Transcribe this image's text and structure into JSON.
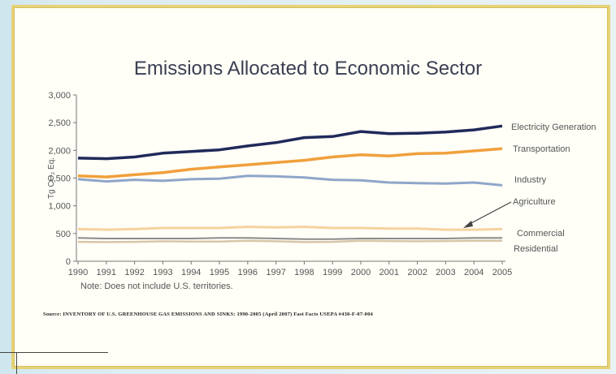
{
  "chart_data": {
    "type": "line",
    "title": "Emissions Allocated to Economic Sector",
    "ylabel": "Tg CO₂ Eq.",
    "xlabel": "",
    "ylim": [
      0,
      3000
    ],
    "yticks": [
      0,
      500,
      1000,
      1500,
      2000,
      2500,
      3000
    ],
    "ytick_labels": [
      "0",
      "500",
      "1,000",
      "1,500",
      "2,000",
      "2,500",
      "3,000"
    ],
    "x": [
      "1990",
      "1991",
      "1992",
      "1993",
      "1994",
      "1995",
      "1996",
      "1997",
      "1998",
      "1999",
      "2000",
      "2001",
      "2002",
      "2003",
      "2004",
      "2005"
    ],
    "series": [
      {
        "name": "Electricity Generation",
        "color": "#1f2a5a",
        "values": [
          1860,
          1850,
          1880,
          1950,
          1980,
          2010,
          2080,
          2140,
          2230,
          2250,
          2340,
          2300,
          2310,
          2330,
          2370,
          2440
        ]
      },
      {
        "name": "Transportation",
        "color": "#f0a03c",
        "values": [
          1540,
          1520,
          1560,
          1600,
          1660,
          1700,
          1740,
          1780,
          1820,
          1880,
          1920,
          1900,
          1940,
          1950,
          1990,
          2030
        ]
      },
      {
        "name": "Industry",
        "color": "#8fa6c9",
        "values": [
          1480,
          1440,
          1470,
          1450,
          1480,
          1490,
          1540,
          1530,
          1510,
          1470,
          1460,
          1420,
          1410,
          1400,
          1420,
          1370
        ]
      },
      {
        "name": "Agriculture",
        "color": "#f6d39e",
        "values": [
          580,
          570,
          580,
          600,
          600,
          600,
          620,
          610,
          620,
          600,
          600,
          590,
          590,
          570,
          570,
          580
        ]
      },
      {
        "name": "Commercial",
        "color": "#8a8a8a",
        "values": [
          420,
          410,
          410,
          410,
          410,
          420,
          420,
          410,
          400,
          400,
          410,
          410,
          410,
          410,
          420,
          420
        ]
      },
      {
        "name": "Residential",
        "color": "#d8c5a8",
        "values": [
          350,
          345,
          350,
          360,
          355,
          355,
          370,
          360,
          345,
          350,
          370,
          365,
          360,
          365,
          370,
          370
        ]
      }
    ],
    "legend_placement": "right (direct labels)",
    "grid": false
  },
  "labels": {
    "electricity": "Electricity Generation",
    "transportation": "Transportation",
    "industry": "Industry",
    "agriculture": "Agriculture",
    "commercial": "Commercial",
    "residential": "Residential"
  },
  "note": "Note: Does not include U.S. territories.",
  "source": "Source: INVENTORY OF U.S. GREENHOUSE GAS EMISSIONS AND SINKS: 1990-2005 (April 2007) Fast Facts USEPA #430-F-07-004"
}
